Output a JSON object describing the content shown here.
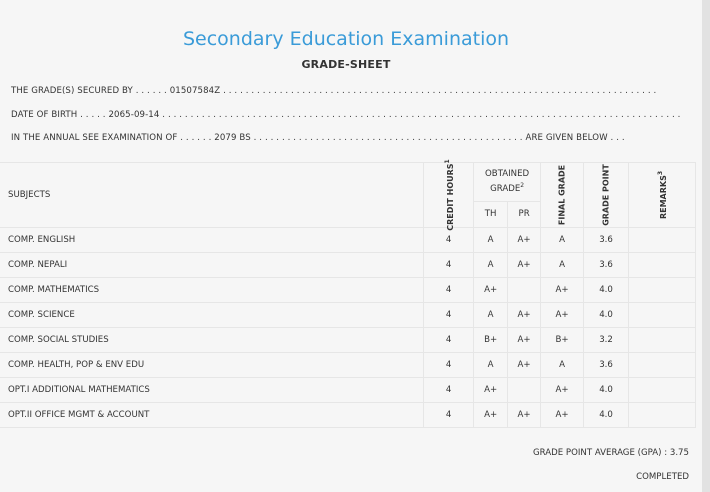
{
  "exam_title": "Secondary Education Examination",
  "sheet_title": "GRADE-SHEET",
  "info": {
    "secured_by_prefix": "THE GRADE(S) SECURED BY . . . . . .",
    "secured_by_value": "01507584Z",
    "secured_by_suffix": ". . . . . . . . . . . . . . . . . . . . . . . . . . . . . . . . . . . . . . . . . . . . . . . . . . . . . . . . . . . . . . . . . . . . . . . . . . . . .",
    "dob_prefix": "DATE OF BIRTH . . . . .",
    "dob_value": "2065-09-14",
    "dob_suffix": ". . . . . . . . . . . . . . . . . . . . . . . . . . . . . . . . . . . . . . . . . . . . . . . . . . . . . . . . . . . . . . . . . . . . . . . . . . . . . . . . . . . . . . . . . . . .",
    "exam_prefix": "IN THE ANNUAL SEE EXAMINATION OF . . . . . .",
    "exam_value": "2079 BS",
    "exam_suffix": ". . . . . . . . . . . . . . . . . . . . . . . . . . . . . . . . . . . . . . . . . . . . . . . . ARE GIVEN BELOW . . ."
  },
  "table": {
    "headers": {
      "subjects": "SUBJECTS",
      "credit_hours": "CREDIT HOURS",
      "credit_hours_sup": "1",
      "obtained_grade": "OBTAINED GRADE",
      "obtained_grade_sup": "2",
      "th": "TH",
      "pr": "PR",
      "final_grade": "FINAL GRADE",
      "grade_point": "GRADE POINT",
      "remarks": "REMARKS",
      "remarks_sup": "3"
    },
    "rows": [
      {
        "subject": "COMP. ENGLISH",
        "credit": "4",
        "th": "A",
        "pr": "A+",
        "final": "A",
        "gp": "3.6",
        "remarks": ""
      },
      {
        "subject": "COMP. NEPALI",
        "credit": "4",
        "th": "A",
        "pr": "A+",
        "final": "A",
        "gp": "3.6",
        "remarks": ""
      },
      {
        "subject": "COMP. MATHEMATICS",
        "credit": "4",
        "th": "A+",
        "pr": "",
        "final": "A+",
        "gp": "4.0",
        "remarks": ""
      },
      {
        "subject": "COMP. SCIENCE",
        "credit": "4",
        "th": "A",
        "pr": "A+",
        "final": "A+",
        "gp": "4.0",
        "remarks": ""
      },
      {
        "subject": "COMP. SOCIAL STUDIES",
        "credit": "4",
        "th": "B+",
        "pr": "A+",
        "final": "B+",
        "gp": "3.2",
        "remarks": ""
      },
      {
        "subject": "COMP. HEALTH, POP & ENV EDU",
        "credit": "4",
        "th": "A",
        "pr": "A+",
        "final": "A",
        "gp": "3.6",
        "remarks": ""
      },
      {
        "subject": "OPT.I ADDITIONAL MATHEMATICS",
        "credit": "4",
        "th": "A+",
        "pr": "",
        "final": "A+",
        "gp": "4.0",
        "remarks": ""
      },
      {
        "subject": "OPT.II OFFICE MGMT & ACCOUNT",
        "credit": "4",
        "th": "A+",
        "pr": "A+",
        "final": "A+",
        "gp": "4.0",
        "remarks": ""
      }
    ]
  },
  "gpa_text": "GRADE POINT AVERAGE (GPA) : 3.75",
  "status_text": "COMPLETED"
}
